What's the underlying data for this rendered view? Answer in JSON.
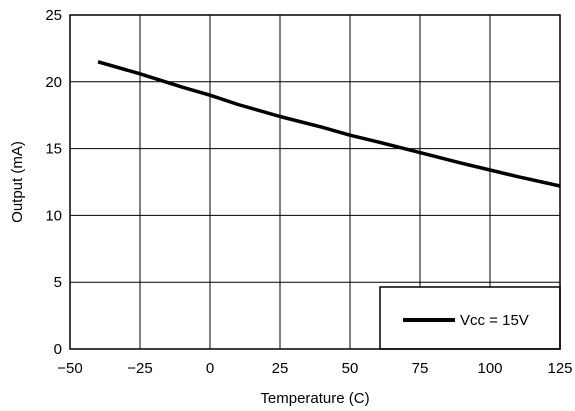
{
  "chart_data": {
    "type": "line",
    "xlabel": "Temperature (C)",
    "ylabel": "Output (mA)",
    "xlim": [
      -50,
      125
    ],
    "ylim": [
      0,
      25
    ],
    "x_ticks": [
      -50,
      -25,
      0,
      25,
      50,
      75,
      100,
      125
    ],
    "y_ticks": [
      0,
      5,
      10,
      15,
      20,
      25
    ],
    "x_tick_labels": [
      "−50",
      "−25",
      "0",
      "25",
      "50",
      "75",
      "100",
      "125"
    ],
    "y_tick_labels": [
      "0",
      "5",
      "10",
      "15",
      "20",
      "25"
    ],
    "grid": true,
    "legend_position": "bottom-right",
    "series": [
      {
        "name": "Vcc = 15V",
        "color": "#000000",
        "x": [
          -40,
          -25,
          -10,
          0,
          10,
          25,
          40,
          50,
          60,
          75,
          90,
          100,
          110,
          125
        ],
        "y": [
          21.5,
          20.6,
          19.6,
          19.0,
          18.3,
          17.4,
          16.6,
          16.0,
          15.5,
          14.7,
          13.9,
          13.4,
          12.9,
          12.2
        ]
      }
    ]
  }
}
